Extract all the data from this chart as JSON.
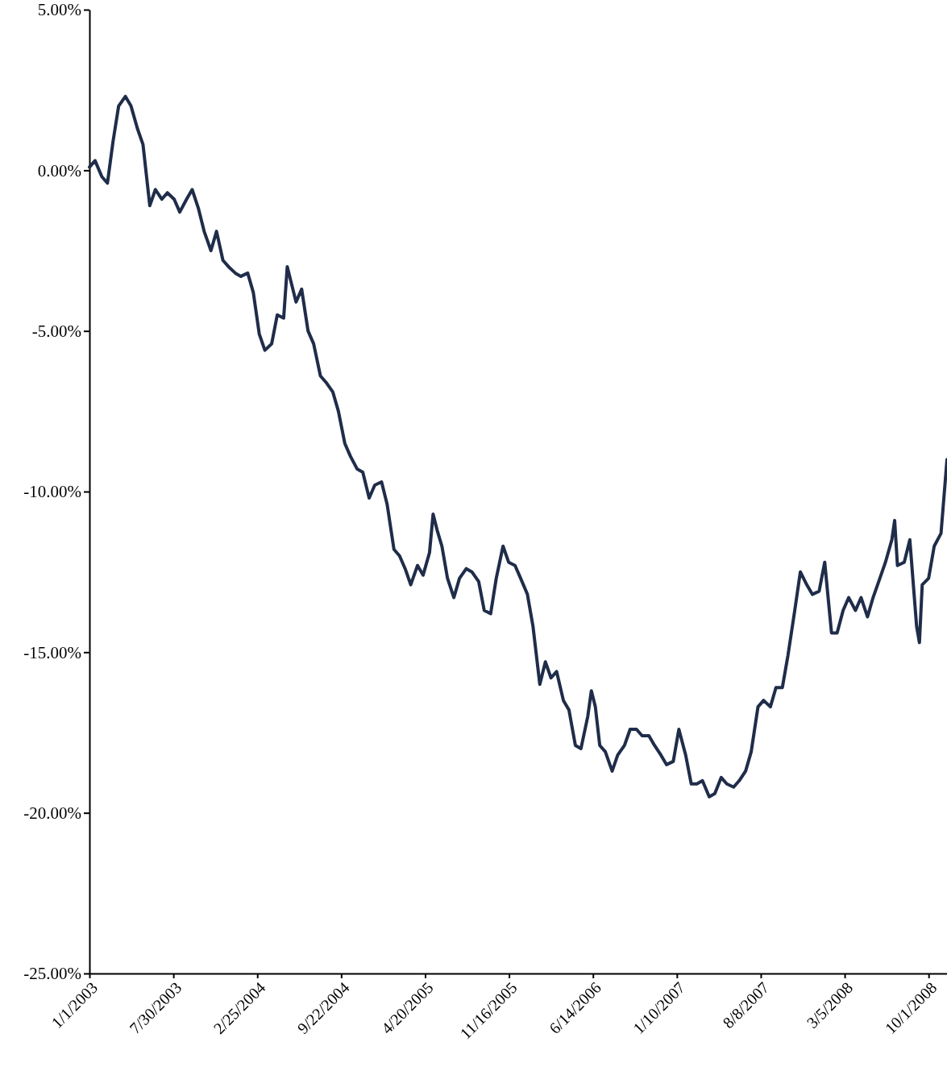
{
  "chart_data": {
    "type": "line",
    "x": [
      "2003-01-01",
      "2003-01-15",
      "2003-02-01",
      "2003-02-15",
      "2003-03-01",
      "2003-03-15",
      "2003-04-01",
      "2003-04-15",
      "2003-05-01",
      "2003-05-15",
      "2003-06-01",
      "2003-06-15",
      "2003-07-01",
      "2003-07-15",
      "2003-08-01",
      "2003-08-15",
      "2003-09-01",
      "2003-09-15",
      "2003-10-01",
      "2003-10-15",
      "2003-11-01",
      "2003-11-15",
      "2003-12-01",
      "2003-12-15",
      "2004-01-01",
      "2004-01-15",
      "2004-02-01",
      "2004-02-15",
      "2004-03-01",
      "2004-03-15",
      "2004-04-01",
      "2004-04-15",
      "2004-05-01",
      "2004-05-10",
      "2004-05-20",
      "2004-06-01",
      "2004-06-15",
      "2004-07-01",
      "2004-07-15",
      "2004-08-01",
      "2004-08-15",
      "2004-09-01",
      "2004-09-15",
      "2004-10-01",
      "2004-10-15",
      "2004-11-01",
      "2004-11-15",
      "2004-12-01",
      "2004-12-15",
      "2005-01-01",
      "2005-01-15",
      "2005-02-01",
      "2005-02-15",
      "2005-03-01",
      "2005-03-15",
      "2005-04-01",
      "2005-04-15",
      "2005-05-01",
      "2005-05-10",
      "2005-05-20",
      "2005-06-01",
      "2005-06-15",
      "2005-07-01",
      "2005-07-15",
      "2005-08-01",
      "2005-08-15",
      "2005-09-01",
      "2005-09-15",
      "2005-10-01",
      "2005-10-15",
      "2005-11-01",
      "2005-11-15",
      "2005-12-01",
      "2005-12-15",
      "2006-01-01",
      "2006-01-15",
      "2006-02-01",
      "2006-02-15",
      "2006-03-01",
      "2006-03-15",
      "2006-04-01",
      "2006-04-15",
      "2006-05-01",
      "2006-05-15",
      "2006-06-01",
      "2006-06-10",
      "2006-06-20",
      "2006-07-01",
      "2006-07-15",
      "2006-08-01",
      "2006-08-15",
      "2006-09-01",
      "2006-09-15",
      "2006-10-01",
      "2006-10-15",
      "2006-11-01",
      "2006-11-15",
      "2006-12-01",
      "2006-12-15",
      "2007-01-01",
      "2007-01-15",
      "2007-02-01",
      "2007-02-15",
      "2007-03-01",
      "2007-03-15",
      "2007-04-01",
      "2007-04-15",
      "2007-05-01",
      "2007-05-15",
      "2007-06-01",
      "2007-06-15",
      "2007-07-01",
      "2007-07-15",
      "2007-08-01",
      "2007-08-15",
      "2007-09-01",
      "2007-09-15",
      "2007-10-01",
      "2007-10-15",
      "2007-11-01",
      "2007-11-15",
      "2007-12-01",
      "2007-12-15",
      "2008-01-01",
      "2008-01-15",
      "2008-02-01",
      "2008-02-15",
      "2008-03-01",
      "2008-03-15",
      "2008-04-01",
      "2008-04-15",
      "2008-05-01",
      "2008-05-15",
      "2008-06-01",
      "2008-06-15",
      "2008-07-01",
      "2008-07-08",
      "2008-07-15",
      "2008-08-01",
      "2008-08-15",
      "2008-09-01",
      "2008-09-08",
      "2008-09-15",
      "2008-10-01",
      "2008-10-15",
      "2008-11-01",
      "2008-11-16"
    ],
    "series": [
      {
        "color": "#1f2d4a",
        "values": [
          0.1,
          0.3,
          -0.2,
          -0.4,
          0.9,
          2.0,
          2.3,
          2.0,
          1.3,
          0.8,
          -1.1,
          -0.6,
          -0.9,
          -0.7,
          -0.9,
          -1.3,
          -0.9,
          -0.6,
          -1.2,
          -1.9,
          -2.5,
          -1.9,
          -2.8,
          -3.0,
          -3.2,
          -3.3,
          -3.2,
          -3.8,
          -5.1,
          -5.6,
          -5.4,
          -4.5,
          -4.6,
          -3.0,
          -3.5,
          -4.1,
          -3.7,
          -5.0,
          -5.4,
          -6.4,
          -6.6,
          -6.9,
          -7.5,
          -8.5,
          -8.9,
          -9.3,
          -9.4,
          -10.2,
          -9.8,
          -9.7,
          -10.4,
          -11.8,
          -12.0,
          -12.4,
          -12.9,
          -12.3,
          -12.6,
          -11.9,
          -10.7,
          -11.2,
          -11.7,
          -12.7,
          -13.3,
          -12.7,
          -12.4,
          -12.5,
          -12.8,
          -13.7,
          -13.8,
          -12.7,
          -11.7,
          -12.2,
          -12.3,
          -12.7,
          -13.2,
          -14.2,
          -16.0,
          -15.3,
          -15.8,
          -15.6,
          -16.5,
          -16.8,
          -17.9,
          -18.0,
          -17.0,
          -16.2,
          -16.7,
          -17.9,
          -18.1,
          -18.7,
          -18.2,
          -17.9,
          -17.4,
          -17.4,
          -17.6,
          -17.6,
          -17.9,
          -18.2,
          -18.5,
          -18.4,
          -17.4,
          -18.2,
          -19.1,
          -19.1,
          -19.0,
          -19.5,
          -19.4,
          -18.9,
          -19.1,
          -19.2,
          -19.0,
          -18.7,
          -18.1,
          -16.7,
          -16.5,
          -16.7,
          -16.1,
          -16.1,
          -15.1,
          -13.7,
          -12.5,
          -12.9,
          -13.2,
          -13.1,
          -12.2,
          -14.4,
          -14.4,
          -13.7,
          -13.3,
          -13.7,
          -13.3,
          -13.9,
          -13.3,
          -12.7,
          -12.2,
          -11.5,
          -10.9,
          -12.3,
          -12.2,
          -11.5,
          -14.2,
          -14.7,
          -12.9,
          -12.7,
          -11.7,
          -11.3,
          -9.0
        ]
      }
    ],
    "xlim": [
      "2003-01-01",
      "2008-11-16"
    ],
    "xticks": [
      {
        "value": "2003-01-01",
        "label": "1/1/2003"
      },
      {
        "value": "2003-07-30",
        "label": "7/30/2003"
      },
      {
        "value": "2004-02-25",
        "label": "2/25/2004"
      },
      {
        "value": "2004-09-22",
        "label": "9/22/2004"
      },
      {
        "value": "2005-04-20",
        "label": "4/20/2005"
      },
      {
        "value": "2005-11-16",
        "label": "11/16/2005"
      },
      {
        "value": "2006-06-14",
        "label": "6/14/2006"
      },
      {
        "value": "2007-01-10",
        "label": "1/10/2007"
      },
      {
        "value": "2007-08-08",
        "label": "8/8/2007"
      },
      {
        "value": "2008-03-05",
        "label": "3/5/2008"
      },
      {
        "value": "2008-10-01",
        "label": "10/1/2008"
      }
    ],
    "ylim": [
      -25,
      5
    ],
    "yticks": [
      {
        "value": 5,
        "label": "5.00%"
      },
      {
        "value": 0,
        "label": "0.00%"
      },
      {
        "value": -5,
        "label": "-5.00%"
      },
      {
        "value": -10,
        "label": "-10.00%"
      },
      {
        "value": -15,
        "label": "-15.00%"
      },
      {
        "value": -20,
        "label": "-20.00%"
      },
      {
        "value": -25,
        "label": "-25.00%"
      }
    ],
    "grid": false,
    "marker": "none",
    "line_style": "solid"
  }
}
